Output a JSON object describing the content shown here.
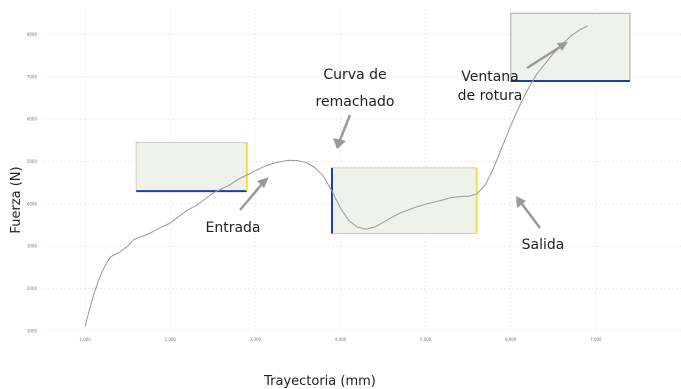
{
  "chart_data": {
    "type": "line",
    "xlabel": "Trayectoria (mm)",
    "ylabel": "Fuerza (N)",
    "xlim": [
      0,
      8000
    ],
    "ylim": [
      950,
      8600
    ],
    "grid": true,
    "x_ticks": [
      1000,
      2000,
      3000,
      4000,
      5000,
      6000,
      7000
    ],
    "x_tick_labels": [
      "1,000",
      "2,000",
      "3,000",
      "4,000",
      "5,000",
      "6,000",
      "7,000"
    ],
    "y_ticks": [
      1000,
      2000,
      3000,
      4000,
      5000,
      6000,
      7000,
      8000
    ],
    "y_tick_labels": [
      "1000",
      "2000",
      "3000",
      "4000",
      "5000",
      "6000",
      "7000",
      "8000"
    ],
    "series": [
      {
        "color": "#999999",
        "points": [
          [
            1000,
            1100
          ],
          [
            1050,
            1500
          ],
          [
            1100,
            1850
          ],
          [
            1150,
            2150
          ],
          [
            1200,
            2400
          ],
          [
            1250,
            2600
          ],
          [
            1300,
            2750
          ],
          [
            1400,
            2850
          ],
          [
            1500,
            3000
          ],
          [
            1570,
            3150
          ],
          [
            1620,
            3200
          ],
          [
            1700,
            3250
          ],
          [
            1800,
            3350
          ],
          [
            1900,
            3450
          ],
          [
            2000,
            3550
          ],
          [
            2100,
            3700
          ],
          [
            2200,
            3850
          ],
          [
            2300,
            3950
          ],
          [
            2400,
            4100
          ],
          [
            2500,
            4250
          ],
          [
            2600,
            4350
          ],
          [
            2700,
            4450
          ],
          [
            2800,
            4580
          ],
          [
            2900,
            4680
          ],
          [
            3000,
            4780
          ],
          [
            3100,
            4880
          ],
          [
            3200,
            4950
          ],
          [
            3300,
            5000
          ],
          [
            3400,
            5030
          ],
          [
            3500,
            5020
          ],
          [
            3600,
            4970
          ],
          [
            3700,
            4850
          ],
          [
            3800,
            4650
          ],
          [
            3900,
            4300
          ],
          [
            4000,
            3900
          ],
          [
            4100,
            3600
          ],
          [
            4200,
            3450
          ],
          [
            4300,
            3400
          ],
          [
            4400,
            3450
          ],
          [
            4500,
            3560
          ],
          [
            4600,
            3680
          ],
          [
            4700,
            3780
          ],
          [
            4800,
            3860
          ],
          [
            4900,
            3930
          ],
          [
            5000,
            3990
          ],
          [
            5100,
            4040
          ],
          [
            5200,
            4090
          ],
          [
            5300,
            4150
          ],
          [
            5400,
            4170
          ],
          [
            5500,
            4180
          ],
          [
            5600,
            4230
          ],
          [
            5700,
            4450
          ],
          [
            5800,
            4850
          ],
          [
            5900,
            5350
          ],
          [
            6000,
            5850
          ],
          [
            6100,
            6300
          ],
          [
            6200,
            6700
          ],
          [
            6300,
            7050
          ],
          [
            6400,
            7300
          ],
          [
            6500,
            7550
          ],
          [
            6600,
            7750
          ],
          [
            6700,
            7950
          ],
          [
            6800,
            8100
          ],
          [
            6900,
            8200
          ]
        ]
      }
    ],
    "windows": [
      {
        "name": "entrada",
        "x": [
          1600,
          2900
        ],
        "y": [
          4300,
          5450
        ],
        "fill": "#eef2ea",
        "edge_color": "#cccccc",
        "bottom_line_color": "#1f3fa0",
        "right_line_color": "#f0e04a"
      },
      {
        "name": "salida",
        "x": [
          3900,
          5600
        ],
        "y": [
          3300,
          4850
        ],
        "fill": "#eef2ea",
        "edge_color": "#cccccc",
        "left_line_color": "#1f3fa0",
        "right_line_color": "#f0e04a"
      },
      {
        "name": "rotura",
        "x": [
          6000,
          7400
        ],
        "y": [
          6900,
          8500
        ],
        "fill": "#eef2ea",
        "edge_color": "#aaaaaa",
        "bottom_line_color": "#1f3fa0"
      }
    ],
    "annotations": [
      {
        "name": "curva-de-remachado",
        "lines": [
          "Curva de",
          "remachado"
        ]
      },
      {
        "name": "ventana-de-rotura",
        "lines": [
          "Ventana",
          "de rotura"
        ]
      },
      {
        "name": "entrada",
        "lines": [
          "Entrada"
        ]
      },
      {
        "name": "salida",
        "lines": [
          "Salida"
        ]
      }
    ]
  }
}
